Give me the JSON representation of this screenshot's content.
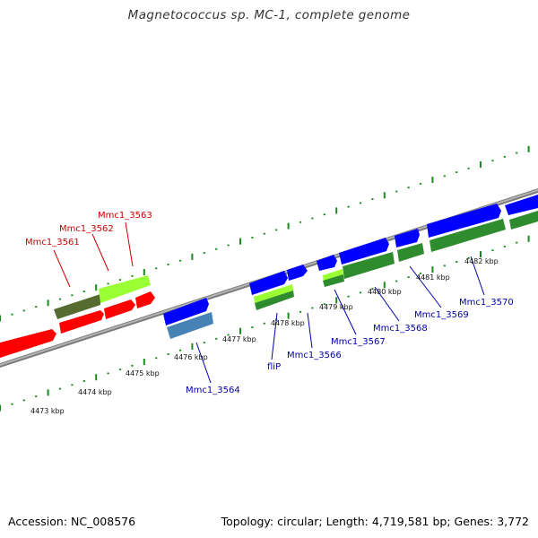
{
  "title": "Magnetococcus sp. MC-1, complete genome",
  "footer": {
    "accession": "Accession: NC_008576",
    "summary": "Topology: circular; Length: 4,719,581 bp; Genes: 3,772"
  },
  "colors": {
    "dna_track": "#8f8f8f",
    "tick": "#1a8a1a",
    "red_label": "#cc0000",
    "blue_label": "#0000aa",
    "red_gene": "#ff0000",
    "blue_gene": "#0000ff",
    "olive_gene": "#6b8e23",
    "lime_gene": "#9aff33",
    "steel_gene": "#4682b4",
    "green_gene": "#2e8b2e"
  },
  "scale": {
    "labels": [
      "4473 kbp",
      "4474 kbp",
      "4475 kbp",
      "4476 kbp",
      "4477 kbp",
      "4478 kbp",
      "4479 kbp",
      "4480 kbp",
      "4481 kbp",
      "4482 kbp"
    ]
  },
  "gene_labels": {
    "red": [
      "Mmc1_3561",
      "Mmc1_3562",
      "Mmc1_3563"
    ],
    "blue": [
      "Mmc1_3564",
      "fliP",
      "Mmc1_3566",
      "Mmc1_3567",
      "Mmc1_3568",
      "Mmc1_3569",
      "Mmc1_3570"
    ]
  }
}
